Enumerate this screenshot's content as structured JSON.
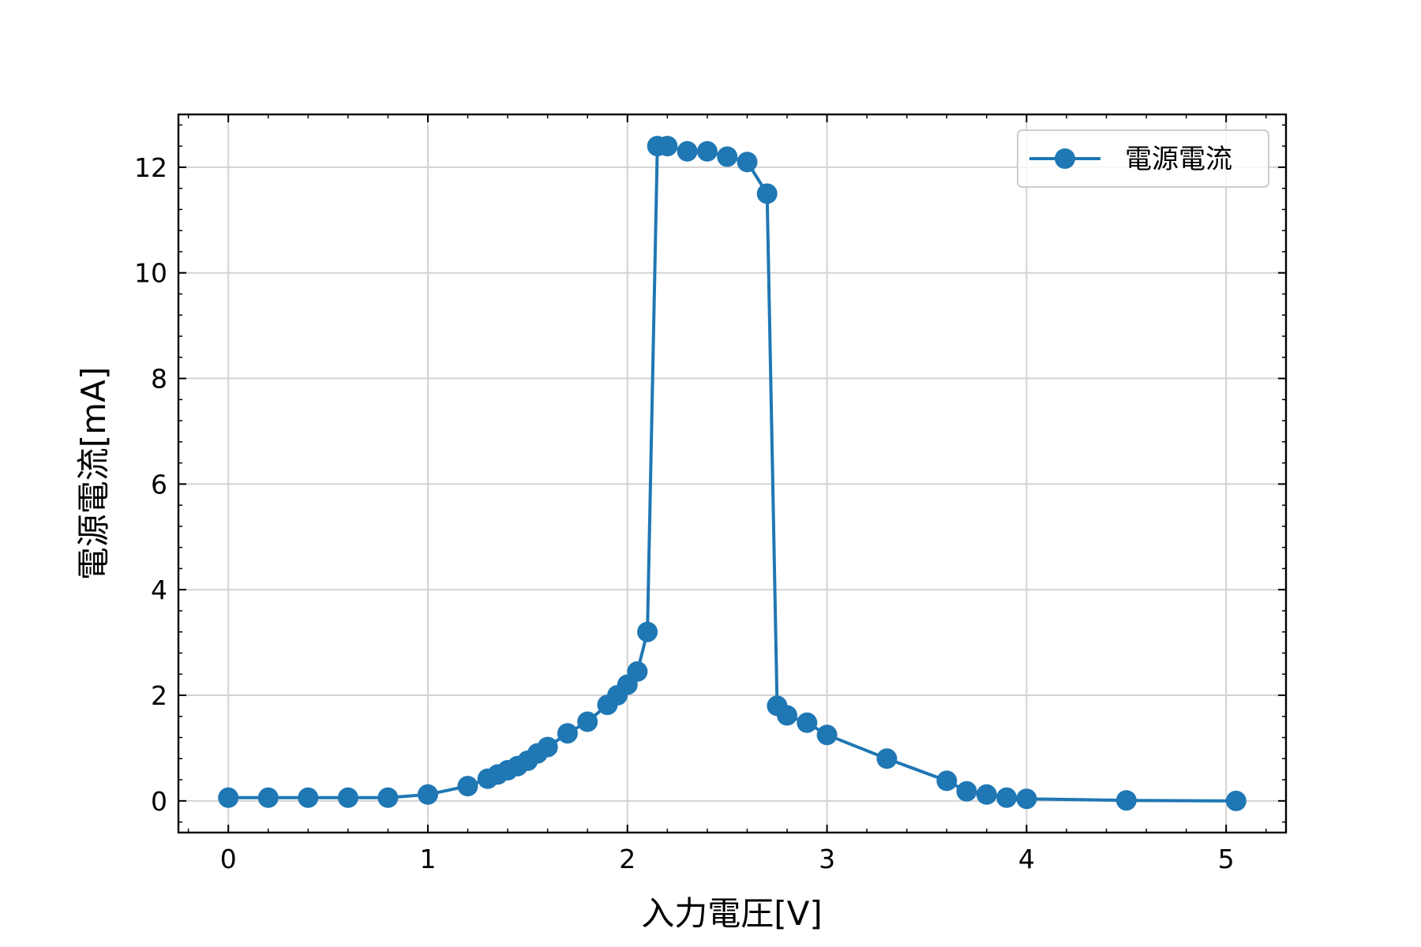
{
  "chart_data": {
    "type": "line",
    "xlabel": "入力電圧[V]",
    "ylabel": "電源電流[mA]",
    "xlim": [
      -0.25,
      5.3
    ],
    "ylim": [
      -0.6,
      13.0
    ],
    "xticks": [
      0,
      1,
      2,
      3,
      4,
      5
    ],
    "yticks": [
      0,
      2,
      4,
      6,
      8,
      10,
      12
    ],
    "grid": true,
    "legend_position": "top-right",
    "color": "#1f77b4",
    "series": [
      {
        "name": "電源電流",
        "points": [
          [
            0.0,
            0.06
          ],
          [
            0.2,
            0.06
          ],
          [
            0.4,
            0.06
          ],
          [
            0.6,
            0.06
          ],
          [
            0.8,
            0.06
          ],
          [
            1.0,
            0.12
          ],
          [
            1.2,
            0.28
          ],
          [
            1.3,
            0.42
          ],
          [
            1.35,
            0.5
          ],
          [
            1.4,
            0.58
          ],
          [
            1.45,
            0.66
          ],
          [
            1.5,
            0.76
          ],
          [
            1.55,
            0.9
          ],
          [
            1.6,
            1.02
          ],
          [
            1.7,
            1.28
          ],
          [
            1.8,
            1.5
          ],
          [
            1.9,
            1.82
          ],
          [
            1.95,
            2.0
          ],
          [
            2.0,
            2.2
          ],
          [
            2.05,
            2.45
          ],
          [
            2.1,
            3.2
          ],
          [
            2.15,
            12.4
          ],
          [
            2.2,
            12.4
          ],
          [
            2.3,
            12.3
          ],
          [
            2.4,
            12.3
          ],
          [
            2.5,
            12.2
          ],
          [
            2.6,
            12.1
          ],
          [
            2.7,
            11.5
          ],
          [
            2.75,
            1.8
          ],
          [
            2.8,
            1.62
          ],
          [
            2.9,
            1.48
          ],
          [
            3.0,
            1.25
          ],
          [
            3.3,
            0.8
          ],
          [
            3.6,
            0.38
          ],
          [
            3.7,
            0.18
          ],
          [
            3.8,
            0.12
          ],
          [
            3.9,
            0.06
          ],
          [
            4.0,
            0.04
          ],
          [
            4.5,
            0.01
          ],
          [
            5.05,
            0.0
          ]
        ]
      }
    ]
  }
}
